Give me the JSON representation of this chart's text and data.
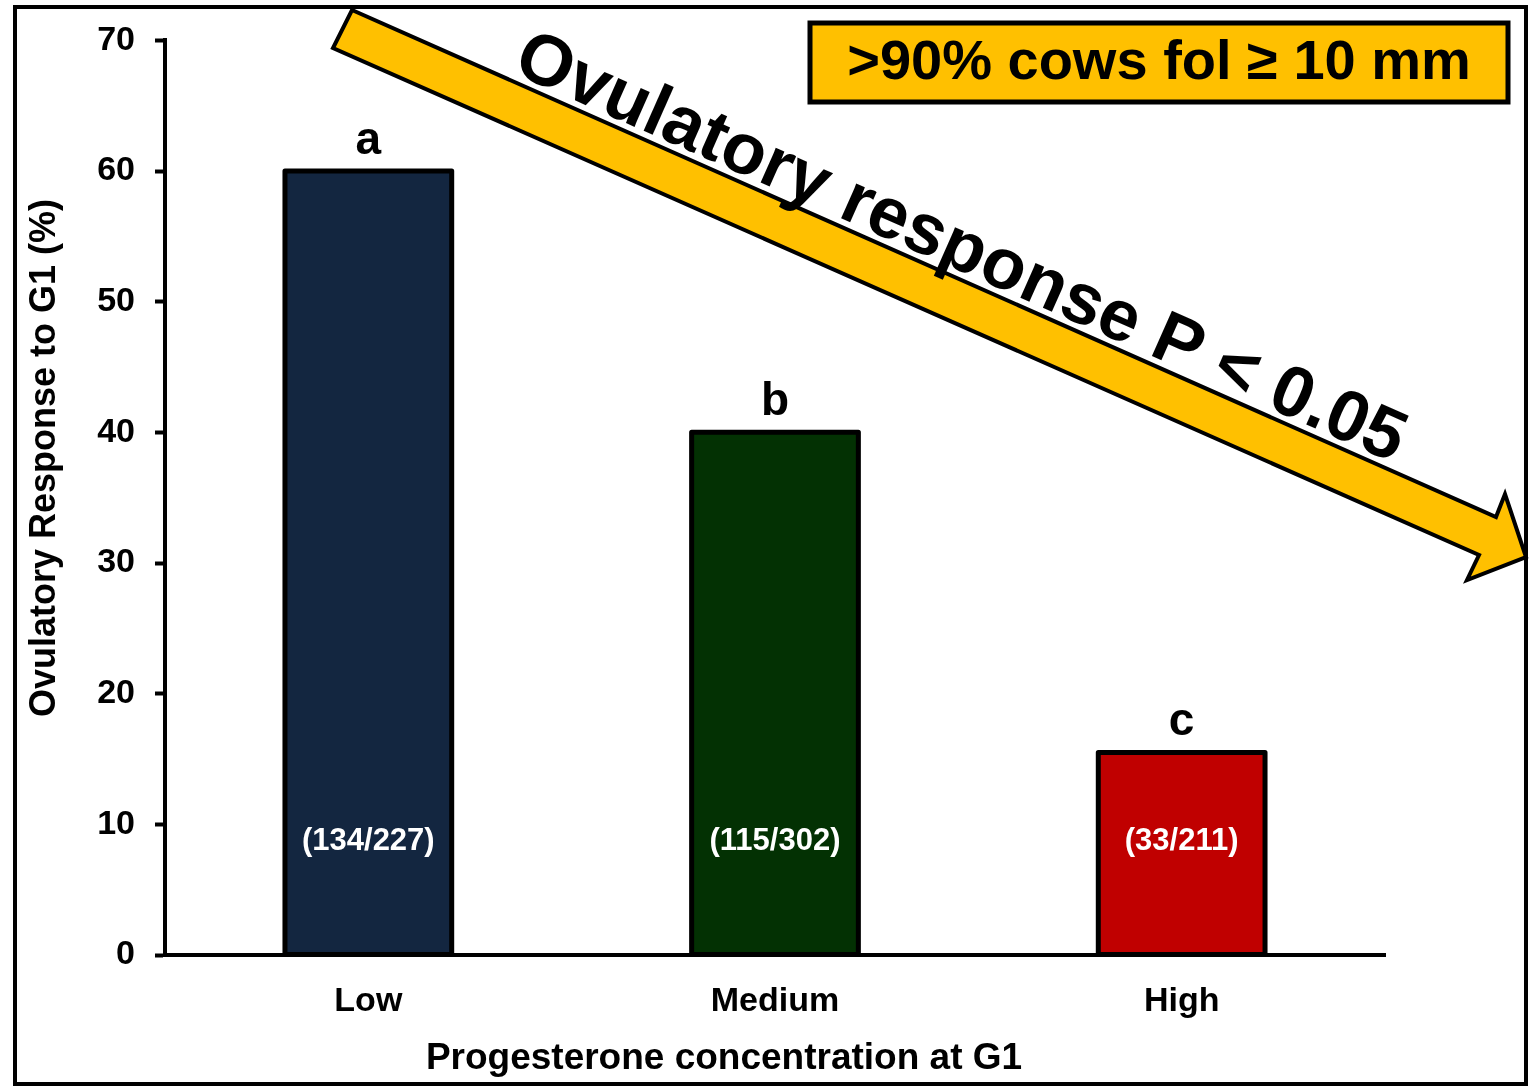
{
  "chart_data": {
    "type": "bar",
    "xlabel": "Progesterone concentration at G1",
    "ylabel": "Ovulatory Response to G1 (%)",
    "categories": [
      "Low",
      "Medium",
      "High"
    ],
    "values": [
      60,
      40,
      15.5
    ],
    "colors": [
      "#132640",
      "#033103",
      "#c00000"
    ],
    "value_labels": [
      "(134/227)",
      "(115/302)",
      "(33/211)"
    ],
    "ylim": [
      0,
      70
    ],
    "yticks": [
      0,
      10,
      20,
      30,
      40,
      50,
      60,
      70
    ],
    "annotations": [
      {
        "text": "a",
        "x": "Low",
        "y": 60
      },
      {
        "text": "b",
        "x": "Medium",
        "y": 40
      },
      {
        "text": "c",
        "x": "High",
        "y": 15.5
      },
      "Ovulatory response P < 0.05",
      ">90% cows fol ≥ 10 mm"
    ]
  }
}
